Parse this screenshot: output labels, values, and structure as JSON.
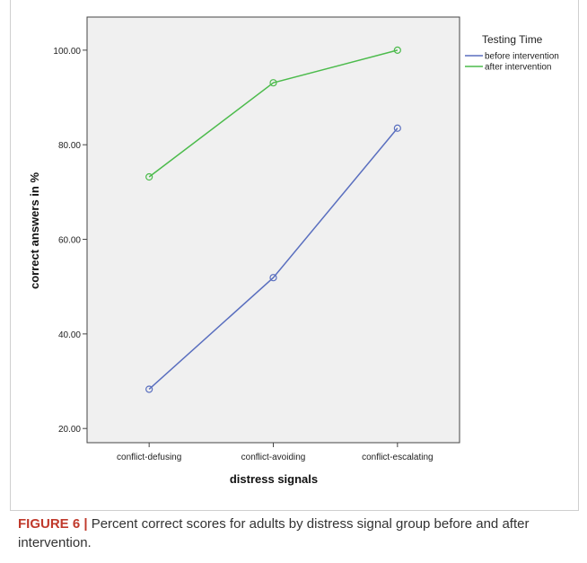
{
  "chart_data": {
    "type": "line",
    "xlabel": "distress signals",
    "ylabel": "correct answers in %",
    "categories": [
      "conflict-defusing",
      "conflict-avoiding",
      "conflict-escalating"
    ],
    "ylim": [
      17,
      107
    ],
    "yticks": [
      "20.00",
      "40.00",
      "60.00",
      "80.00",
      "100.00"
    ],
    "ytick_values": [
      20,
      40,
      60,
      80,
      100
    ],
    "grid": false,
    "legend_title": "Testing Time",
    "legend_position": "right",
    "series": [
      {
        "name": "before intervention",
        "color": "#5a6fbf",
        "values": [
          28.3,
          51.9,
          83.5
        ]
      },
      {
        "name": "after intervention",
        "color": "#4cbb4c",
        "values": [
          73.2,
          93.1,
          100.0
        ]
      }
    ]
  },
  "caption": {
    "label": "FIGURE 6 |",
    "text": " Percent correct scores for adults by distress signal group before and after intervention."
  }
}
